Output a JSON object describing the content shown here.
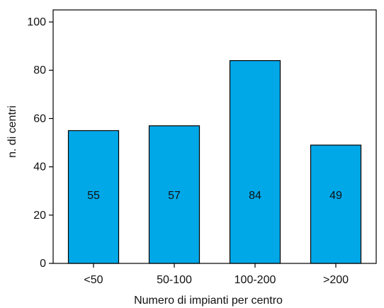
{
  "chart_data": {
    "type": "bar",
    "categories": [
      "<50",
      "50-100",
      "100-200",
      ">200"
    ],
    "values": [
      55,
      57,
      84,
      49
    ],
    "data_labels": [
      "55",
      "57",
      "84",
      "49"
    ],
    "title": "",
    "xlabel": "Numero di impianti per centro",
    "ylabel": "n. di centri",
    "ylim": [
      0,
      105
    ],
    "yticks": [
      0,
      20,
      40,
      60,
      80,
      100
    ],
    "ytick_labels": [
      "0",
      "20",
      "40",
      "60",
      "80",
      "100"
    ],
    "grid": false,
    "legend": "none",
    "colors": {
      "bar": "#00a8e8",
      "bar_edge": "#000000",
      "axis": "#000000",
      "text": "#111111"
    }
  }
}
